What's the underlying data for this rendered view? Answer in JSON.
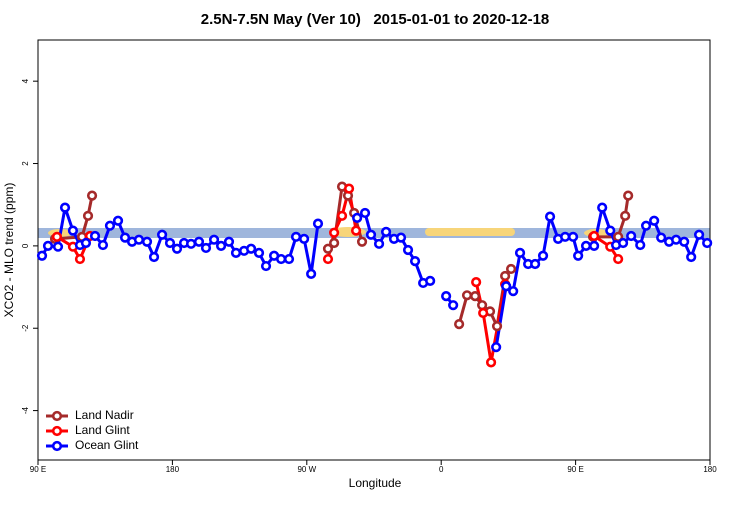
{
  "chart_data": {
    "type": "line",
    "title": "2.5N-7.5N May (Ver 10)   2015-01-01 to 2020-12-18",
    "x_label": "Longitude",
    "y_label": "XCO2 - MLO trend (ppm)",
    "xlim": [
      90,
      540
    ],
    "ylim": [
      -5.2,
      5.0
    ],
    "xticks": [
      {
        "value": 90,
        "label": "90 E"
      },
      180,
      {
        "value": 270,
        "label": "90 W"
      },
      {
        "value": 360,
        "label": "0"
      },
      {
        "value": 450,
        "label": "90 E"
      },
      {
        "value": 540,
        "label": "180"
      }
    ],
    "yticks": [
      -4,
      -2,
      0,
      2,
      4
    ],
    "legend": "bottom-left",
    "series": [
      {
        "name": "Land Nadir",
        "color": "#a52a2a",
        "x": [
          101.4,
          119.5,
          123.5,
          126.2,
          null,
          284.2,
          288.3,
          293.6,
          297.6,
          301.7,
          307.0,
          null,
          372.0,
          377.3,
          382.7,
          387.4,
          392.7,
          397.4,
          402.8,
          406.8,
          null,
          461.7,
          478.5,
          483.2,
          485.2
        ],
        "values": [
          0.17,
          0.22,
          0.73,
          1.22,
          null,
          -0.07,
          0.07,
          1.44,
          1.22,
          0.8,
          0.1,
          null,
          -1.9,
          -1.2,
          -1.22,
          -1.44,
          -1.59,
          -1.95,
          -0.73,
          -0.56,
          null,
          0.22,
          0.22,
          0.73,
          1.22
        ]
      },
      {
        "name": "Land Glint",
        "color": "#ff0000",
        "x": [
          102.7,
          113.4,
          118.1,
          124.8,
          null,
          284.2,
          288.3,
          293.6,
          298.3,
          303.0,
          null,
          383.4,
          388.1,
          393.4,
          402.8,
          null,
          462.4,
          473.2,
          478.5
        ],
        "values": [
          0.22,
          -0.02,
          -0.32,
          0.24,
          null,
          -0.32,
          0.32,
          0.73,
          1.39,
          0.37,
          null,
          -0.88,
          -1.63,
          -2.83,
          -0.93,
          null,
          0.24,
          -0.02,
          -0.32
        ]
      },
      {
        "name": "Ocean Glint",
        "color": "#0000ff",
        "x": [
          92.7,
          96.7,
          103.4,
          108.1,
          113.4,
          118.1,
          122.1,
          128.2,
          133.5,
          138.2,
          143.6,
          148.3,
          153.0,
          157.6,
          163.0,
          167.7,
          173.1,
          178.4,
          183.1,
          187.8,
          192.5,
          197.8,
          202.5,
          207.9,
          212.6,
          217.9,
          222.6,
          228.0,
          232.7,
          238.0,
          242.7,
          248.1,
          252.8,
          258.1,
          262.8,
          268.2,
          272.9,
          277.5,
          null,
          303.7,
          309.0,
          313.0,
          318.4,
          323.1,
          328.4,
          333.1,
          337.8,
          342.5,
          347.9,
          352.6,
          null,
          363.3,
          368.0,
          null,
          396.8,
          403.5,
          408.2,
          412.8,
          418.2,
          422.9,
          428.2,
          432.9,
          438.3,
          443.0,
          448.3,
          451.7,
          457.0,
          462.4,
          467.8,
          473.2,
          477.1,
          481.8,
          487.2,
          493.3,
          497.2,
          502.6,
          507.3,
          512.6,
          517.3,
          522.7,
          527.4,
          532.7,
          538.1
        ],
        "values": [
          -0.24,
          0,
          -0.02,
          0.93,
          0.37,
          0.02,
          0.07,
          0.24,
          0.02,
          0.49,
          0.61,
          0.2,
          0.1,
          0.15,
          0.1,
          -0.27,
          0.27,
          0.07,
          -0.07,
          0.07,
          0.05,
          0.1,
          -0.05,
          0.15,
          0,
          0.1,
          -0.17,
          -0.12,
          -0.07,
          -0.17,
          -0.49,
          -0.24,
          -0.32,
          -0.32,
          0.22,
          0.17,
          -0.68,
          0.54,
          null,
          0.68,
          0.8,
          0.27,
          0.05,
          0.34,
          0.17,
          0.2,
          -0.1,
          -0.37,
          -0.9,
          -0.85,
          null,
          -1.22,
          -1.44,
          null,
          -2.46,
          -0.98,
          -1.1,
          -0.17,
          -0.44,
          -0.44,
          -0.24,
          0.71,
          0.17,
          0.22,
          0.22,
          -0.24,
          0,
          0,
          0.93,
          0.37,
          0.02,
          0.07,
          0.24,
          0.02,
          0.49,
          0.61,
          0.2,
          0.1,
          0.15,
          0.1,
          -0.27,
          0.27,
          0.07
        ]
      }
    ]
  }
}
